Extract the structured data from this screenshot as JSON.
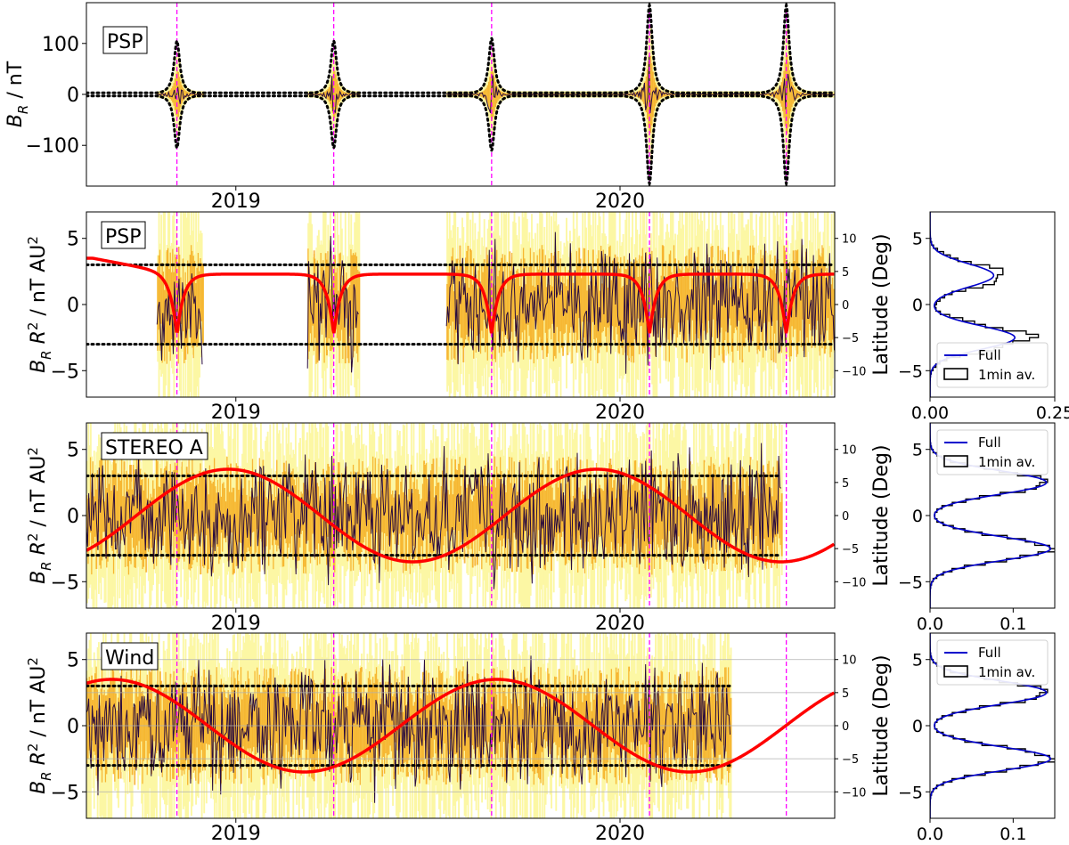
{
  "figure": {
    "colors": {
      "fill_light": "#fcf7a4",
      "fill_mid": "#f4a20c",
      "fill_dark": "#2a0c3e",
      "model": "#ff0000",
      "perihelion_marker": "#ff00ff",
      "guide": "#000000",
      "hist_full": "#0000cc",
      "hist_1min": "#000000",
      "grid": "#b0b0b0"
    }
  },
  "chart_data": [
    {
      "id": "psp_br",
      "type": "area",
      "label": "PSP",
      "ylabel": "B_R / nT",
      "ylabel_main": "B",
      "ylabel_sub": "R",
      "ylabel_rest": " / nT",
      "ylim": [
        -180,
        180
      ],
      "yticks": [
        100,
        0,
        -100
      ],
      "ytick_labels": [
        "100",
        "0",
        "−100"
      ],
      "xlim": [
        "2018-08-12",
        "2020-07-23"
      ],
      "xtick_labels": [
        "2019",
        "2020"
      ],
      "xticks": [
        "2019-01-01",
        "2020-01-01"
      ],
      "perihelion_dates": [
        "2018-11-06",
        "2019-04-04",
        "2019-09-01",
        "2020-01-29",
        "2020-06-07"
      ],
      "data_coverage": [
        [
          "2018-10-18",
          "2018-12-01"
        ],
        [
          "2019-03-10",
          "2019-04-28"
        ],
        [
          "2019-07-20",
          "2020-07-23"
        ]
      ],
      "envelope": "± B0 (1 AU / R)^2",
      "envelope_peak_nT": [
        105,
        105,
        110,
        175,
        175
      ],
      "grid": false,
      "legend": null
    },
    {
      "id": "psp_brr2",
      "type": "area",
      "label": "PSP",
      "ylabel": "B_R R^2 / nT AU^2",
      "ylim": [
        -7,
        7
      ],
      "yticks": [
        5,
        0,
        -5
      ],
      "ytick_labels": [
        "5",
        "0",
        "−5"
      ],
      "y2label": "Latitude (Deg)",
      "y2lim": [
        -14,
        14
      ],
      "y2ticks": [
        10,
        5,
        0,
        -5,
        -10
      ],
      "y2tick_labels": [
        "10",
        "5",
        "0",
        "−5",
        "−10"
      ],
      "guide_lines": [
        3,
        -3
      ],
      "xlim": [
        "2018-08-12",
        "2020-07-23"
      ],
      "xtick_labels": [
        "2019",
        "2020"
      ],
      "xticks": [
        "2019-01-01",
        "2020-01-01"
      ],
      "perihelion_dates": [
        "2018-11-06",
        "2019-04-04",
        "2019-09-01",
        "2020-01-29",
        "2020-06-07"
      ],
      "data_coverage": [
        [
          "2018-10-18",
          "2018-12-01"
        ],
        [
          "2019-03-10",
          "2019-04-28"
        ],
        [
          "2019-07-20",
          "2020-07-23"
        ]
      ],
      "latitude_model": "PSP heliographic latitude: dips to about −4.5° at each perihelion, about +4.5° between",
      "grid": false,
      "legend": null
    },
    {
      "id": "stereo_brr2",
      "type": "area",
      "label": "STEREO A",
      "ylabel": "B_R R^2 / nT AU^2",
      "ylim": [
        -7,
        7
      ],
      "yticks": [
        5,
        0,
        -5
      ],
      "ytick_labels": [
        "5",
        "0",
        "−5"
      ],
      "y2label": "Latitude (Deg)",
      "y2lim": [
        -14,
        14
      ],
      "y2ticks": [
        10,
        5,
        0,
        -5,
        -10
      ],
      "y2tick_labels": [
        "10",
        "5",
        "0",
        "−5",
        "−10"
      ],
      "guide_lines": [
        3,
        -3
      ],
      "xlim": [
        "2018-08-12",
        "2020-07-23"
      ],
      "xtick_labels": [
        "2019",
        "2020"
      ],
      "xticks": [
        "2019-01-01",
        "2020-01-01"
      ],
      "perihelion_dates": [
        "2018-11-06",
        "2019-04-04",
        "2019-09-01",
        "2020-01-29",
        "2020-06-07"
      ],
      "data_coverage": [
        [
          "2018-08-12",
          "2020-06-02"
        ]
      ],
      "latitude_model": "sinusoid, amplitude 7°, maxima 2018-12-25 and 2019-12-10",
      "grid": false,
      "legend": null
    },
    {
      "id": "wind_brr2",
      "type": "area",
      "label": "Wind",
      "ylabel": "B_R R^2 / nT AU^2",
      "ylim": [
        -7,
        7
      ],
      "yticks": [
        5,
        0,
        -5
      ],
      "ytick_labels": [
        "5",
        "0",
        "−5"
      ],
      "y2label": "Latitude (Deg)",
      "y2lim": [
        -14,
        14
      ],
      "y2ticks": [
        10,
        5,
        0,
        -5,
        -10
      ],
      "y2tick_labels": [
        "10",
        "5",
        "0",
        "−5",
        "−10"
      ],
      "guide_lines": [
        3,
        -3
      ],
      "xlim": [
        "2018-08-12",
        "2020-07-23"
      ],
      "xtick_labels": [
        "2019",
        "2020"
      ],
      "xticks": [
        "2019-01-01",
        "2020-01-01"
      ],
      "perihelion_dates": [
        "2018-11-06",
        "2019-04-04",
        "2019-09-01",
        "2020-01-29",
        "2020-06-07"
      ],
      "data_coverage": [
        [
          "2018-08-12",
          "2020-04-15"
        ]
      ],
      "latitude_model": "sinusoid, amplitude 7°, maxima 2018-09-05 and 2019-09-06",
      "grid": true,
      "legend": null
    },
    {
      "id": "psp_hist",
      "type": "line",
      "ylim": [
        -7,
        7
      ],
      "yticks": [
        5,
        0,
        -5
      ],
      "ytick_labels": [
        "5",
        "0",
        "−5"
      ],
      "xlim": [
        0,
        0.25
      ],
      "xticks": [
        0,
        0.25
      ],
      "xtick_labels": [
        "0.00",
        "0.25"
      ],
      "density_peaks": [
        {
          "center": -2.5,
          "height": 0.2
        },
        {
          "center": 2.2,
          "height": 0.15
        }
      ],
      "series": [
        {
          "name": "Full"
        },
        {
          "name": "1min av."
        }
      ],
      "legend": "lower-right"
    },
    {
      "id": "stereo_hist",
      "type": "line",
      "ylim": [
        -7,
        7
      ],
      "yticks": [
        5,
        0,
        -5
      ],
      "ytick_labels": [
        "5",
        "0",
        "−5"
      ],
      "xlim": [
        0,
        0.15
      ],
      "xticks": [
        0,
        0.1
      ],
      "xtick_labels": [
        "0.0",
        "0.1"
      ],
      "density_peaks": [
        {
          "center": -2.5,
          "height": 0.145
        },
        {
          "center": 2.5,
          "height": 0.14
        }
      ],
      "series": [
        {
          "name": "Full"
        },
        {
          "name": "1min av."
        }
      ],
      "legend": "upper-right"
    },
    {
      "id": "wind_hist",
      "type": "line",
      "ylim": [
        -7,
        7
      ],
      "yticks": [
        5,
        0,
        -5
      ],
      "ytick_labels": [
        "5",
        "0",
        "−5"
      ],
      "xlim": [
        0,
        0.15
      ],
      "xticks": [
        0,
        0.1
      ],
      "xtick_labels": [
        "0.0",
        "0.1"
      ],
      "density_peaks": [
        {
          "center": -2.5,
          "height": 0.145
        },
        {
          "center": 2.5,
          "height": 0.14
        }
      ],
      "series": [
        {
          "name": "Full"
        },
        {
          "name": "1min av."
        }
      ],
      "legend": "upper-right"
    }
  ]
}
